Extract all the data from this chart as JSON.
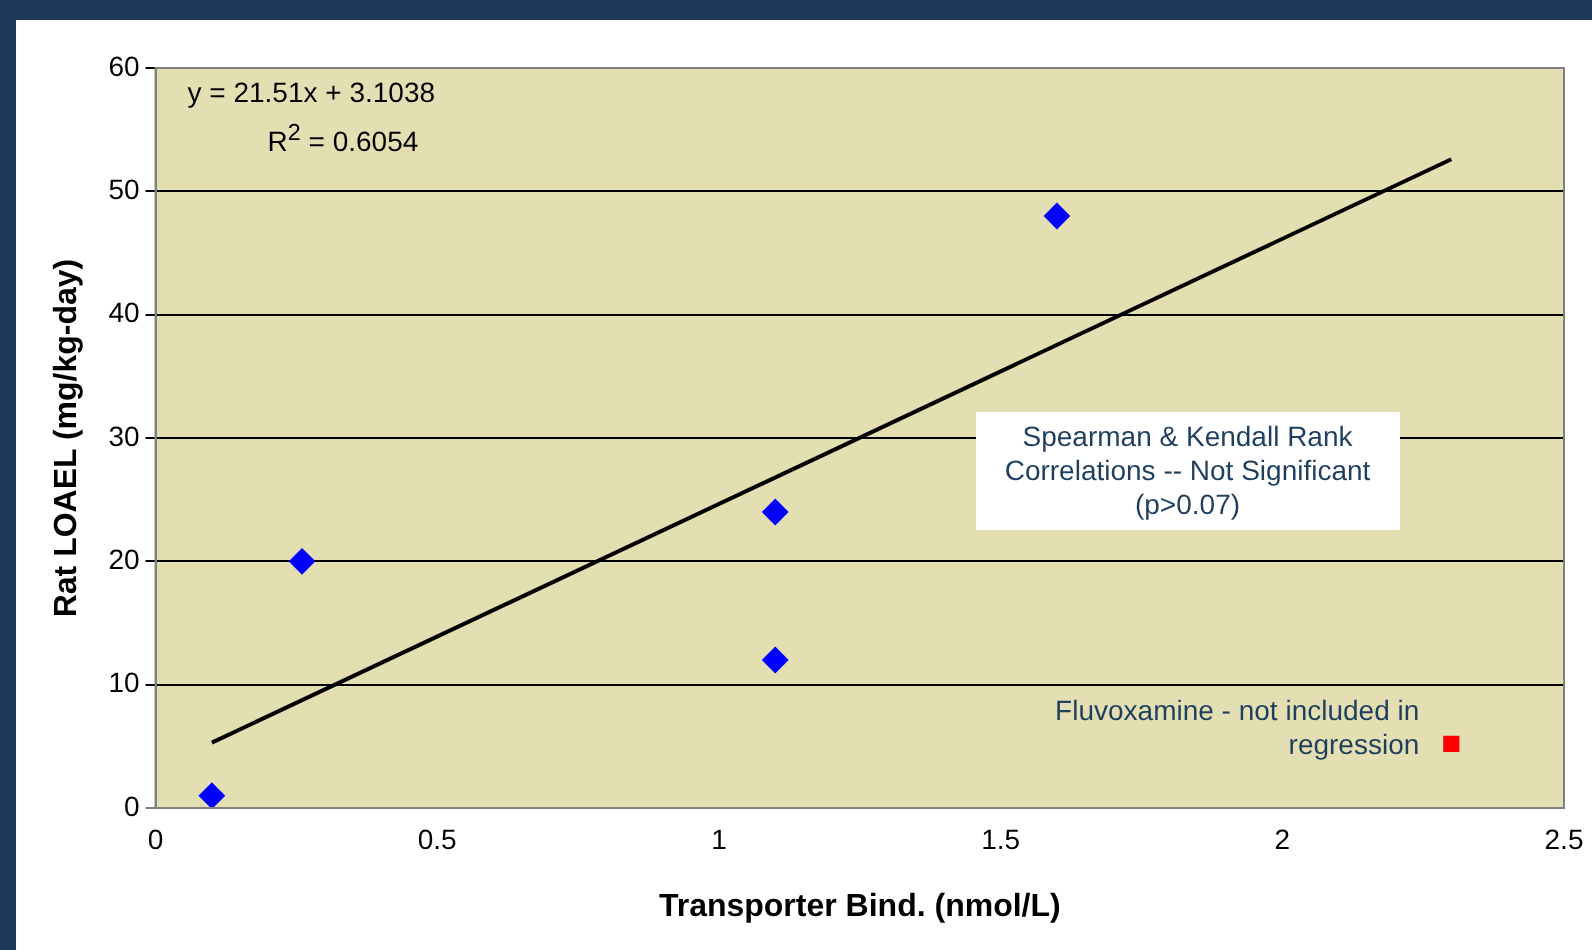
{
  "chart_data": {
    "type": "scatter",
    "xlabel": "Transporter Bind. (nmol/L)",
    "ylabel": "Rat LOAEL (mg/kg-day)",
    "xlim": [
      0,
      2.5
    ],
    "xticks": [
      0,
      0.5,
      1,
      1.5,
      2,
      2.5
    ],
    "ylim": [
      0,
      60
    ],
    "yticks": [
      0,
      10,
      20,
      30,
      40,
      50,
      60
    ],
    "grid": "y",
    "legend": false,
    "series": [
      {
        "type": "scatter",
        "color": "#0000ff",
        "marker": "diamond",
        "x": [
          0.1,
          0.26,
          1.1,
          1.1,
          1.6
        ],
        "values": [
          1,
          20,
          24,
          12,
          48
        ]
      },
      {
        "type": "scatter",
        "color": "#ff0000",
        "marker": "square",
        "x": [
          2.3
        ],
        "values": [
          5.2
        ]
      },
      {
        "type": "line",
        "color": "#000000",
        "marker": "none",
        "line_style": "solid",
        "x": [
          0.1,
          2.3
        ],
        "values": [
          5.3,
          52.6
        ]
      }
    ],
    "annotations": [
      "y = 21.51x + 3.1038",
      "R$^{2}$ = 0.6054",
      "Spearman & Kendall Rank Correlations -- Not Significant (p>0.07)",
      {
        "text": "Fluvoxamine - not included in regression",
        "x": 2.3,
        "y": 5.2
      }
    ]
  }
}
